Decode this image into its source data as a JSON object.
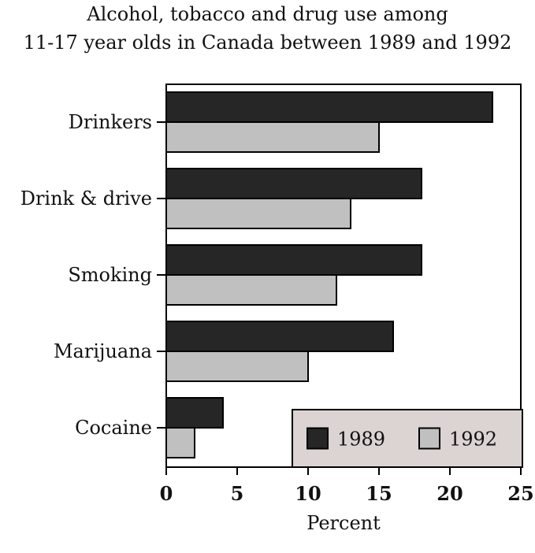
{
  "title_lines": [
    "Alcohol, tobacco and drug use among",
    "11-17 year olds in Canada between 1989 and 1992"
  ],
  "chart_data": {
    "type": "bar",
    "orientation": "horizontal",
    "title": "Alcohol, tobacco and drug use among 11-17 year olds in Canada between 1989 and 1992",
    "xlabel": "Percent",
    "ylabel": "",
    "xlim": [
      0,
      25
    ],
    "xticks": [
      "0",
      "5",
      "10",
      "15",
      "20",
      "25"
    ],
    "categories": [
      "Drinkers",
      "Drink & drive",
      "Smoking",
      "Marijuana",
      "Cocaine"
    ],
    "series": [
      {
        "name": "1989",
        "color": "#262626",
        "values": [
          23,
          18,
          18,
          16,
          4
        ]
      },
      {
        "name": "1992",
        "color": "#c0c0c0",
        "values": [
          15,
          13,
          12,
          10,
          2
        ]
      }
    ],
    "grid": false,
    "legend": {
      "placement": "bottom-right",
      "background": "#dcd3d3"
    }
  }
}
